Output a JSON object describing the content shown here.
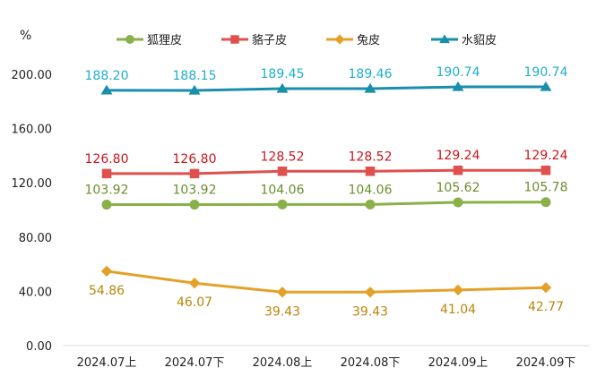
{
  "chart_data": {
    "type": "line",
    "title": "",
    "xlabel": "",
    "ylabel": "%",
    "ylim": [
      0,
      200
    ],
    "yticks": [
      "0.00",
      "40.00",
      "80.00",
      "120.00",
      "160.00",
      "200.00"
    ],
    "grid": false,
    "legend_position": "top",
    "categories": [
      "2024.07上",
      "2024.07下",
      "2024.08上",
      "2024.08下",
      "2024.09上",
      "2024.09下"
    ],
    "series": [
      {
        "name": "狐狸皮",
        "color": "#8ab04a",
        "marker": "circle",
        "values": [
          103.92,
          103.92,
          104.06,
          104.06,
          105.62,
          105.78
        ],
        "labels": [
          "103.92",
          "103.92",
          "104.06",
          "104.06",
          "105.62",
          "105.78"
        ],
        "label_color": "#6b8e2e",
        "label_position": "above"
      },
      {
        "name": "貉子皮",
        "color": "#e0504d",
        "marker": "square",
        "values": [
          126.8,
          126.8,
          128.52,
          128.52,
          129.24,
          129.24
        ],
        "labels": [
          "126.80",
          "126.80",
          "128.52",
          "128.52",
          "129.24",
          "129.24"
        ],
        "label_color": "#c8161d",
        "label_position": "above"
      },
      {
        "name": "兔皮",
        "color": "#e4a12a",
        "marker": "diamond",
        "values": [
          54.86,
          46.07,
          39.43,
          39.43,
          41.04,
          42.77
        ],
        "labels": [
          "54.86",
          "46.07",
          "39.43",
          "39.43",
          "41.04",
          "42.77"
        ],
        "label_color": "#b8860b",
        "label_position": "below"
      },
      {
        "name": "水貂皮",
        "color": "#1a8eab",
        "marker": "triangle",
        "values": [
          188.2,
          188.15,
          189.45,
          189.46,
          190.74,
          190.74
        ],
        "labels": [
          "188.20",
          "188.15",
          "189.45",
          "189.46",
          "190.74",
          "190.74"
        ],
        "label_color": "#1faecc",
        "label_position": "above"
      }
    ]
  }
}
